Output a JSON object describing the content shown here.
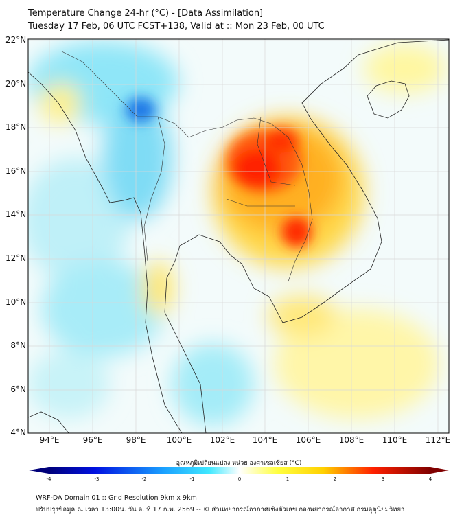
{
  "header": {
    "title": "Temperature Change 24-hr (°C) - [Data Assimilation]",
    "subtitle": "Tuesday 17 Feb, 06 UTC FCST+138, Valid at :: Mon 23 Feb, 00 UTC"
  },
  "map": {
    "lat_labels": [
      "22°N",
      "20°N",
      "18°N",
      "16°N",
      "14°N",
      "12°N",
      "10°N",
      "8°N",
      "6°N",
      "4°N"
    ],
    "lon_labels": [
      "94°E",
      "96°E",
      "98°E",
      "100°E",
      "102°E",
      "104°E",
      "106°E",
      "108°E",
      "110°E",
      "112°E"
    ],
    "extent": {
      "lon": [
        93,
        112.5
      ],
      "lat": [
        4,
        22.2
      ]
    }
  },
  "colorbar": {
    "label": "อุณหภูมิเปลี่ยนแปลง หน่วย องศาเซลเซียส (°C)",
    "ticks": [
      "-4",
      "-3",
      "-2",
      "-1",
      "0",
      "1",
      "2",
      "3",
      "4"
    ],
    "range": [
      -4,
      4
    ]
  },
  "footer": {
    "line1": "WRF-DA Domain 01 :: Grid Resolution 9km x 9km",
    "line2": "ปรับปรุงข้อมูล ณ เวลา 13:00น. วัน อ. ที่ 17 ก.พ. 2569 -- © ส่วนพยากรณ์อากาศเชิงตัวเลข กองพยากรณ์อากาศ กรมอุตุนิยมวิทยา"
  }
}
